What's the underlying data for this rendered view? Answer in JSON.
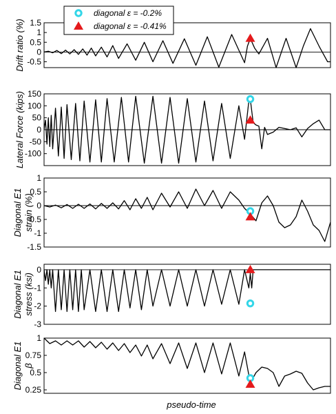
{
  "chart_data": {
    "type": "line",
    "xlabel": "pseudo-time",
    "legend": {
      "placement": "top-left",
      "entries": [
        {
          "label": "diagonal ε = -0.2%",
          "marker": "circle",
          "color": "#33d6e8"
        },
        {
          "label": "diagonal ε = -0.41%",
          "marker": "triangle",
          "color": "#e41a1c"
        }
      ]
    },
    "x_range": [
      0,
      100
    ],
    "panels": [
      {
        "ylabel": [
          "Drift ratio (%)"
        ],
        "ylim": [
          -0.8,
          1.5
        ],
        "yticks": [
          1.5,
          1,
          0.5,
          0,
          -0.5
        ],
        "ytick_labels": [
          "1.5",
          "1",
          "0.5",
          "0",
          "-0.5"
        ],
        "zero_line": true,
        "series": [
          {
            "x": [
              0,
              1.5,
              3,
              4.5,
              6,
              7.5,
              9,
              10.5,
              12,
              13.5,
              15,
              16.5,
              18,
              20,
              22,
              24,
              26,
              29,
              32,
              35,
              38,
              41.5,
              45,
              49,
              53,
              57,
              61,
              65.5,
              70,
              71,
              72,
              73.5,
              75,
              78,
              81,
              84.5,
              88,
              90.5,
              93,
              96,
              99,
              100
            ],
            "y": [
              0,
              0.04,
              -0.04,
              0.08,
              -0.08,
              0.1,
              -0.1,
              0.12,
              -0.12,
              0.16,
              -0.16,
              0.2,
              -0.2,
              0.25,
              -0.25,
              0.33,
              -0.33,
              0.42,
              -0.42,
              0.5,
              -0.5,
              0.58,
              -0.58,
              0.68,
              -0.68,
              0.78,
              -0.78,
              0.9,
              -0.55,
              0.3,
              0.7,
              0.2,
              -0.1,
              0.7,
              -0.8,
              0.7,
              -0.8,
              0.3,
              1.2,
              0.3,
              -0.5,
              -0.5
            ]
          }
        ],
        "markers": [
          {
            "type": "triangle",
            "x": 72,
            "y": 0.7
          }
        ]
      },
      {
        "ylabel": [
          "Lateral Force (kips)"
        ],
        "ylim": [
          -150,
          150
        ],
        "yticks": [
          150,
          100,
          50,
          0,
          -50,
          -100
        ],
        "ytick_labels": [
          "150",
          "100",
          "50",
          "0",
          "-50",
          "-100"
        ],
        "zero_line": true,
        "series": [
          {
            "x": [
              0,
              0.5,
              1,
              1.5,
              2,
              2.5,
              3,
              4,
              5,
              6,
              7,
              8,
              9.5,
              11,
              12.5,
              14,
              16,
              18,
              20,
              22,
              24.5,
              27,
              29.5,
              32,
              35,
              38,
              41,
              44,
              47,
              50,
              53,
              56,
              59,
              62,
              65,
              68,
              70,
              71.5,
              72,
              73,
              74,
              75,
              76,
              77,
              78,
              80,
              82,
              84,
              86,
              88,
              90,
              92,
              94,
              96,
              98,
              100
            ],
            "y": [
              0,
              40,
              -60,
              50,
              -70,
              60,
              -80,
              90,
              -110,
              95,
              -120,
              105,
              -125,
              110,
              -130,
              120,
              -135,
              125,
              -135,
              130,
              -135,
              135,
              -135,
              140,
              -140,
              140,
              -140,
              135,
              -140,
              130,
              -135,
              120,
              -130,
              110,
              -120,
              100,
              -40,
              120,
              128,
              30,
              20,
              15,
              -80,
              10,
              -20,
              -10,
              10,
              5,
              0,
              8,
              -30,
              5,
              25,
              40,
              0,
              0
            ]
          }
        ],
        "markers": [
          {
            "type": "circle",
            "x": 72,
            "y": 128
          },
          {
            "type": "triangle",
            "x": 72,
            "y": 40
          }
        ]
      },
      {
        "ylabel": [
          "Diagonal E1",
          "strain (%)"
        ],
        "ylim": [
          -1.5,
          1
        ],
        "yticks": [
          1,
          0.5,
          0,
          -0.5,
          -1,
          -1.5
        ],
        "ytick_labels": [
          "1",
          "0.5",
          "0",
          "-0.5",
          "-1",
          "-1.5"
        ],
        "zero_line": true,
        "series": [
          {
            "x": [
              0,
              2,
              4,
              6,
              8,
              10,
              12,
              14,
              16,
              18,
              20,
              22,
              24,
              26,
              28,
              30,
              32,
              34,
              36,
              38,
              41,
              44,
              47,
              50,
              53,
              56,
              59,
              62,
              65,
              68,
              70,
              72,
              74,
              76,
              78,
              80,
              82,
              84,
              86,
              88,
              90,
              92,
              94,
              96,
              98,
              100
            ],
            "y": [
              0,
              -0.05,
              0.02,
              -0.08,
              0.04,
              -0.1,
              0.05,
              -0.1,
              0.06,
              -0.12,
              0.08,
              -0.1,
              0.1,
              -0.12,
              0.18,
              -0.15,
              0.25,
              -0.1,
              0.3,
              -0.15,
              0.45,
              -0.05,
              0.5,
              -0.1,
              0.6,
              0,
              0.55,
              -0.1,
              0.5,
              0.2,
              -0.1,
              -0.3,
              -0.55,
              0.1,
              0.35,
              0,
              -0.6,
              -0.8,
              -0.7,
              -0.4,
              0.2,
              -0.2,
              -0.7,
              -0.9,
              -1.3,
              -0.6
            ]
          }
        ],
        "markers": [
          {
            "type": "circle",
            "x": 72,
            "y": -0.2
          },
          {
            "type": "triangle",
            "x": 72,
            "y": -0.41
          }
        ]
      },
      {
        "ylabel": [
          "Diagonal E1",
          "stress (ksi)"
        ],
        "ylim": [
          -3,
          0.3
        ],
        "yticks": [
          0,
          -1,
          -2,
          -3
        ],
        "ytick_labels": [
          "0",
          "-1",
          "-2",
          "-3"
        ],
        "zero_line": true,
        "series": [
          {
            "x": [
              0,
              0.5,
              1,
              1.5,
              2,
              2.5,
              3,
              4,
              5,
              6,
              7,
              8,
              9,
              10,
              11,
              12,
              13,
              14,
              16,
              18,
              20,
              22,
              24,
              26,
              28,
              30,
              32,
              34,
              36,
              38,
              41,
              44,
              47,
              50,
              53,
              56,
              59,
              62,
              65,
              68,
              70,
              71.5,
              72,
              72.5,
              73,
              75,
              80,
              85,
              90,
              95,
              100
            ],
            "y": [
              0,
              -0.6,
              0,
              -0.8,
              0,
              -1.0,
              0,
              -2.3,
              0,
              -2.2,
              0,
              -2.3,
              0,
              -2.2,
              0,
              -2.3,
              0,
              -2.2,
              0,
              -2.3,
              0,
              -2.3,
              0,
              -2.3,
              0,
              -2.1,
              0,
              -2.2,
              0,
              -2.0,
              0,
              -2.0,
              0,
              -2.0,
              0,
              -2.0,
              0,
              -1.9,
              0,
              -1.9,
              0,
              -1.0,
              -0.2,
              -1.0,
              0,
              0,
              0,
              0,
              0,
              0,
              0
            ]
          }
        ],
        "markers": [
          {
            "type": "circle",
            "x": 72,
            "y": -1.85
          },
          {
            "type": "triangle",
            "x": 72,
            "y": 0
          }
        ]
      },
      {
        "ylabel": [
          "Diagonal E1",
          "β"
        ],
        "ylim": [
          0.2,
          1
        ],
        "yticks": [
          1,
          0.75,
          0.5,
          0.25
        ],
        "ytick_labels": [
          "1",
          "0.75",
          "0.5",
          "0.25"
        ],
        "zero_line": false,
        "series": [
          {
            "x": [
              0,
              2,
              4,
              6,
              8,
              10,
              12,
              14,
              16,
              18,
              20,
              22,
              24,
              26,
              28,
              30,
              32,
              34,
              36,
              38,
              41,
              44,
              47,
              50,
              53,
              56,
              59,
              62,
              65,
              68,
              70,
              72,
              74,
              76,
              78,
              80,
              82,
              84,
              86,
              88,
              90,
              92,
              94,
              96,
              98,
              100
            ],
            "y": [
              1,
              0.92,
              0.96,
              0.9,
              0.96,
              0.9,
              0.96,
              0.87,
              0.95,
              0.86,
              0.94,
              0.84,
              0.93,
              0.82,
              0.92,
              0.79,
              0.9,
              0.74,
              0.9,
              0.7,
              0.92,
              0.63,
              0.93,
              0.56,
              0.93,
              0.5,
              0.93,
              0.48,
              0.93,
              0.45,
              0.8,
              0.35,
              0.5,
              0.58,
              0.56,
              0.5,
              0.3,
              0.45,
              0.48,
              0.52,
              0.49,
              0.35,
              0.25,
              0.28,
              0.3,
              0.3
            ]
          }
        ],
        "markers": [
          {
            "type": "circle",
            "x": 72,
            "y": 0.42
          },
          {
            "type": "triangle",
            "x": 72,
            "y": 0.33
          }
        ]
      }
    ]
  }
}
